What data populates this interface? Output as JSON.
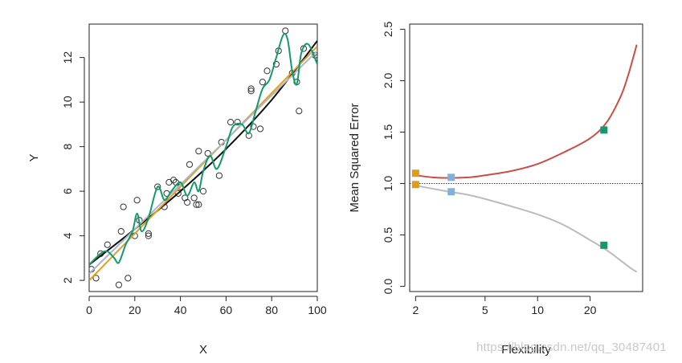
{
  "chart_data": [
    {
      "type": "scatter",
      "xlabel": "X",
      "ylabel": "Y",
      "xlim": [
        0,
        100
      ],
      "ylim": [
        1.5,
        13.5
      ],
      "xticks": [
        0,
        20,
        40,
        60,
        80,
        100
      ],
      "yticks": [
        2,
        4,
        6,
        8,
        10,
        12
      ],
      "points": [
        [
          1,
          2.5
        ],
        [
          3,
          2.1
        ],
        [
          5,
          3.2
        ],
        [
          8,
          3.6
        ],
        [
          13,
          1.8
        ],
        [
          14,
          4.2
        ],
        [
          15,
          5.3
        ],
        [
          17,
          2.1
        ],
        [
          20,
          4.0
        ],
        [
          21,
          5.6
        ],
        [
          22,
          4.7
        ],
        [
          26,
          4.0
        ],
        [
          26,
          4.1
        ],
        [
          30,
          6.2
        ],
        [
          33,
          5.3
        ],
        [
          34,
          5.9
        ],
        [
          35,
          6.4
        ],
        [
          37,
          6.5
        ],
        [
          38,
          6.4
        ],
        [
          39,
          5.9
        ],
        [
          40,
          6.2
        ],
        [
          42,
          5.7
        ],
        [
          43,
          5.5
        ],
        [
          44,
          7.2
        ],
        [
          46,
          5.7
        ],
        [
          47,
          5.4
        ],
        [
          48,
          7.8
        ],
        [
          48,
          5.4
        ],
        [
          50,
          6.0
        ],
        [
          52,
          7.7
        ],
        [
          57,
          6.7
        ],
        [
          58,
          8.2
        ],
        [
          62,
          9.1
        ],
        [
          65,
          9.1
        ],
        [
          70,
          8.5
        ],
        [
          71,
          10.6
        ],
        [
          71,
          10.5
        ],
        [
          72,
          8.9
        ],
        [
          75,
          8.8
        ],
        [
          76,
          10.9
        ],
        [
          78,
          11.4
        ],
        [
          82,
          11.7
        ],
        [
          83,
          12.3
        ],
        [
          86,
          13.2
        ],
        [
          89,
          11.3
        ],
        [
          91,
          10.9
        ],
        [
          92,
          9.6
        ],
        [
          94,
          12.4
        ],
        [
          99,
          12.1
        ],
        [
          100,
          12.0
        ]
      ],
      "series": [
        {
          "name": "",
          "color": "#111111",
          "x": [
            0,
            20,
            40,
            60,
            80,
            100
          ],
          "y": [
            2.7,
            4.3,
            6.0,
            7.9,
            10.1,
            12.75
          ]
        },
        {
          "name": "",
          "color": "#e0a020",
          "x": [
            0,
            100
          ],
          "y": [
            2.0,
            12.5
          ]
        },
        {
          "name": "",
          "color": "#aab8c8",
          "x": [
            0,
            50,
            100
          ],
          "y": [
            2.3,
            7.3,
            12.3
          ]
        },
        {
          "name": "",
          "color": "#119a6e",
          "x": [
            0,
            5,
            8,
            11,
            13,
            16,
            19,
            21,
            23,
            26,
            30,
            33,
            36,
            40,
            43,
            46,
            48,
            50,
            53,
            56,
            60,
            63,
            67,
            70,
            73,
            76,
            79,
            82,
            85,
            87,
            89,
            91,
            93,
            96,
            100
          ],
          "y": [
            2.7,
            3.2,
            3.3,
            3.0,
            2.8,
            3.6,
            4.2,
            5.0,
            4.2,
            4.8,
            6.2,
            5.6,
            6.0,
            6.4,
            5.8,
            6.4,
            6.0,
            6.9,
            7.6,
            7.0,
            8.0,
            8.9,
            9.0,
            8.6,
            9.6,
            10.6,
            11.0,
            12.0,
            13.0,
            12.8,
            11.4,
            10.8,
            12.2,
            12.6,
            11.7
          ]
        }
      ]
    },
    {
      "type": "line",
      "xlabel": "Flexibility",
      "ylabel": "Mean Squared Error",
      "xscale": "log",
      "xlim": [
        1.85,
        40
      ],
      "ylim": [
        -0.05,
        2.55
      ],
      "xticks": [
        2,
        5,
        10,
        20
      ],
      "yticks": [
        0.0,
        0.5,
        1.0,
        1.5,
        2.0,
        2.5
      ],
      "ytick_labels": [
        "0.0",
        "0.5",
        "1.0",
        "1.5",
        "2.0",
        "2.5"
      ],
      "reference_line": {
        "y": 1.0,
        "style": "dotted"
      },
      "series": [
        {
          "name": "",
          "color": "#cc4c46",
          "x": [
            2,
            2.5,
            3,
            4,
            5,
            7,
            10,
            14,
            20,
            25,
            30,
            33,
            35,
            37
          ],
          "y": [
            1.08,
            1.06,
            1.055,
            1.06,
            1.08,
            1.12,
            1.19,
            1.3,
            1.44,
            1.6,
            1.85,
            2.05,
            2.2,
            2.35
          ]
        },
        {
          "name": "",
          "color": "#bbbbbb",
          "x": [
            2,
            2.5,
            3,
            4,
            5,
            7,
            10,
            14,
            20,
            25,
            30,
            34,
            37
          ],
          "y": [
            0.98,
            0.95,
            0.925,
            0.89,
            0.85,
            0.78,
            0.7,
            0.6,
            0.45,
            0.35,
            0.25,
            0.18,
            0.14
          ]
        }
      ],
      "markers": [
        {
          "x": 2,
          "y": 1.1,
          "color": "#e09b17"
        },
        {
          "x": 2,
          "y": 0.99,
          "color": "#e09b17"
        },
        {
          "x": 3.2,
          "y": 1.06,
          "color": "#7eb2dd"
        },
        {
          "x": 3.2,
          "y": 0.92,
          "color": "#7eb2dd"
        },
        {
          "x": 24,
          "y": 1.52,
          "color": "#119a6e"
        },
        {
          "x": 24,
          "y": 0.4,
          "color": "#119a6e"
        }
      ]
    }
  ],
  "watermark": "https://blog.csdn.net/qq_30487401"
}
